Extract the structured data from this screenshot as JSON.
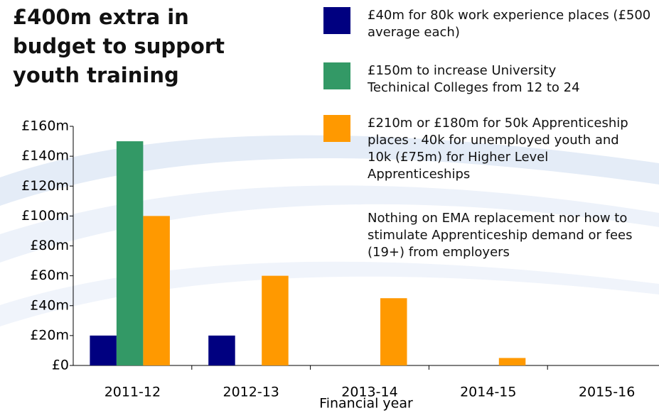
{
  "chart_data": {
    "type": "bar",
    "title": "£400m extra in budget to support youth training",
    "categories": [
      "2011-12",
      "2012-13",
      "2013-14",
      "2014-15",
      "2015-16"
    ],
    "x_label": "Financial year",
    "series": [
      {
        "name": "£40m for 80k work experience places (£500 average each)",
        "color": "#000080",
        "values": [
          20,
          20,
          0,
          0,
          0
        ]
      },
      {
        "name": "£150m to increase University Techinical Colleges from 12 to 24",
        "color": "#339966",
        "values": [
          150,
          0,
          0,
          0,
          0
        ]
      },
      {
        "name": "£210m or £180m for 50k Apprenticeship places : 40k for unemployed youth and 10k (£75m) for Higher Level Apprenticeships",
        "color": "#ff9900",
        "values": [
          100,
          60,
          45,
          5,
          0
        ]
      }
    ],
    "annotation": "Nothing on EMA replacement nor how to stimulate Apprenticeship demand or fees (19+) from employers",
    "ylim": [
      0,
      160
    ],
    "yticks": [
      {
        "value": 0,
        "label": "£0"
      },
      {
        "value": 20,
        "label": "£20m"
      },
      {
        "value": 40,
        "label": "£40m"
      },
      {
        "value": 60,
        "label": "£60m"
      },
      {
        "value": 80,
        "label": "£80m"
      },
      {
        "value": 100,
        "label": "£100m"
      },
      {
        "value": 120,
        "label": "£120m"
      },
      {
        "value": 140,
        "label": "£140m"
      },
      {
        "value": 160,
        "label": "£160m"
      }
    ],
    "grid": false
  }
}
